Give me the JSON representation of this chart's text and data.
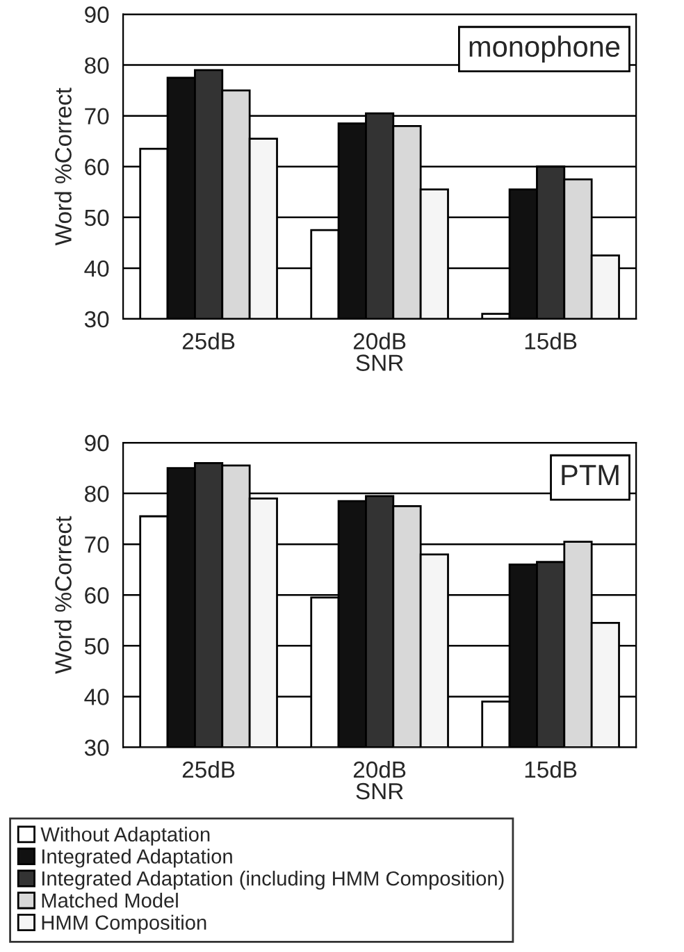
{
  "chart_data": [
    {
      "type": "bar",
      "xlabel": "SNR",
      "ylabel": "Word %Correct",
      "annotations": [
        "monophone"
      ],
      "categories": [
        "25dB",
        "20dB",
        "15dB"
      ],
      "series": [
        {
          "color": "#ffffff",
          "values": [
            63.5,
            47.5,
            31
          ]
        },
        {
          "color": "#111111",
          "values": [
            77.5,
            68.5,
            55.5
          ]
        },
        {
          "color": "#333333",
          "values": [
            79,
            70.5,
            60
          ]
        },
        {
          "color": "#d8d8d8",
          "values": [
            75,
            68,
            57.5
          ]
        },
        {
          "color": "#f5f5f5",
          "values": [
            65.5,
            55.5,
            42.5
          ]
        }
      ],
      "ylim": [
        30,
        90
      ],
      "yticks": [
        30,
        40,
        50,
        60,
        70,
        80,
        90
      ],
      "grid": "y",
      "legend": false
    },
    {
      "type": "bar",
      "xlabel": "SNR",
      "ylabel": "Word %Correct",
      "annotations": [
        "PTM"
      ],
      "categories": [
        "25dB",
        "20dB",
        "15dB"
      ],
      "series": [
        {
          "name": "Without Adaptation",
          "color": "#ffffff",
          "values": [
            75.5,
            59.5,
            39
          ]
        },
        {
          "name": "Integrated Adaptation",
          "color": "#111111",
          "values": [
            85,
            78.5,
            66
          ]
        },
        {
          "name": "Integrated Adaptation (including HMM Composition)",
          "color": "#333333",
          "values": [
            86,
            79.5,
            66.5
          ]
        },
        {
          "name": "Matched Model",
          "color": "#d8d8d8",
          "values": [
            85.5,
            77.5,
            70.5
          ]
        },
        {
          "name": "HMM Composition",
          "color": "#f5f5f5",
          "values": [
            79,
            68,
            54.5
          ]
        }
      ],
      "ylim": [
        30,
        90
      ],
      "yticks": [
        30,
        40,
        50,
        60,
        70,
        80,
        90
      ],
      "grid": "y",
      "legend": "bottom"
    }
  ]
}
